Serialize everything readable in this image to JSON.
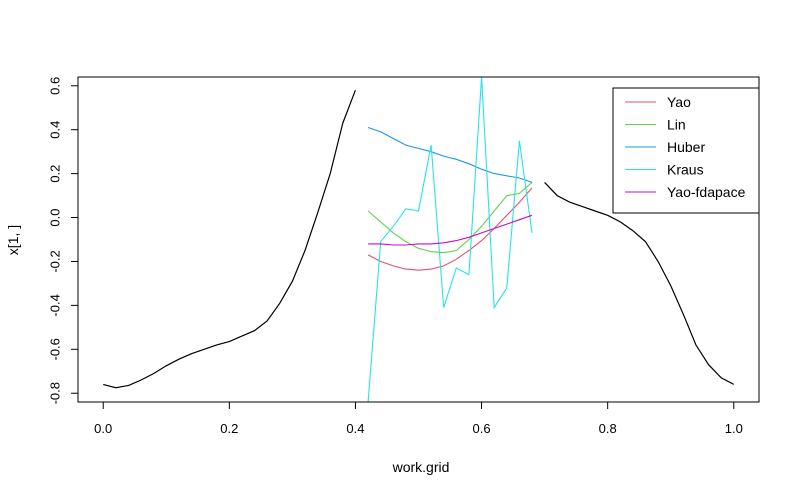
{
  "chart_data": {
    "type": "line",
    "title": "",
    "xlabel": "work.grid",
    "ylabel": "x[1, ]",
    "xlim": [
      -0.04,
      1.04
    ],
    "ylim": [
      -0.84,
      0.64
    ],
    "xticks": [
      "0.0",
      "0.2",
      "0.4",
      "0.6",
      "0.8",
      "1.0"
    ],
    "yticks": [
      "-0.8",
      "-0.6",
      "-0.4",
      "-0.2",
      "0.0",
      "0.2",
      "0.4",
      "0.6"
    ],
    "grid": false,
    "legend_position": "top-right",
    "observed": [
      {
        "name": "",
        "color": "#000000",
        "x": [
          0.0,
          0.02,
          0.04,
          0.06,
          0.08,
          0.1,
          0.12,
          0.14,
          0.16,
          0.18,
          0.2,
          0.22,
          0.24,
          0.26,
          0.28,
          0.3,
          0.32,
          0.34,
          0.36,
          0.38,
          0.4
        ],
        "y": [
          -0.76,
          -0.775,
          -0.765,
          -0.74,
          -0.71,
          -0.675,
          -0.645,
          -0.62,
          -0.6,
          -0.58,
          -0.565,
          -0.54,
          -0.515,
          -0.47,
          -0.39,
          -0.29,
          -0.15,
          0.02,
          0.2,
          0.43,
          0.58
        ]
      },
      {
        "name": "",
        "color": "#000000",
        "x": [
          0.7,
          0.72,
          0.74,
          0.76,
          0.78,
          0.8,
          0.82,
          0.84,
          0.86,
          0.88,
          0.9,
          0.92,
          0.94,
          0.96,
          0.98,
          1.0
        ],
        "y": [
          0.16,
          0.1,
          0.07,
          0.05,
          0.03,
          0.01,
          -0.02,
          -0.06,
          -0.11,
          -0.2,
          -0.31,
          -0.44,
          -0.58,
          -0.67,
          -0.73,
          -0.76
        ]
      }
    ],
    "series": [
      {
        "name": "Yao",
        "color": "#DF536B",
        "x": [
          0.42,
          0.44,
          0.46,
          0.48,
          0.5,
          0.52,
          0.54,
          0.56,
          0.58,
          0.6,
          0.62,
          0.64,
          0.66,
          0.68
        ],
        "y": [
          -0.17,
          -0.2,
          -0.22,
          -0.235,
          -0.24,
          -0.235,
          -0.22,
          -0.19,
          -0.15,
          -0.105,
          -0.05,
          0.01,
          0.07,
          0.135
        ]
      },
      {
        "name": "Lin",
        "color": "#61D04F",
        "x": [
          0.42,
          0.44,
          0.46,
          0.48,
          0.5,
          0.52,
          0.54,
          0.56,
          0.58,
          0.6,
          0.62,
          0.64,
          0.66,
          0.68
        ],
        "y": [
          0.03,
          -0.02,
          -0.07,
          -0.11,
          -0.14,
          -0.155,
          -0.16,
          -0.15,
          -0.1,
          -0.04,
          0.03,
          0.1,
          0.11,
          0.16
        ]
      },
      {
        "name": "Huber",
        "color": "#2297E6",
        "x": [
          0.42,
          0.44,
          0.46,
          0.48,
          0.5,
          0.52,
          0.54,
          0.56,
          0.58,
          0.6,
          0.62,
          0.64,
          0.66,
          0.68
        ],
        "y": [
          0.41,
          0.39,
          0.36,
          0.33,
          0.315,
          0.3,
          0.28,
          0.265,
          0.245,
          0.22,
          0.2,
          0.19,
          0.18,
          0.16
        ]
      },
      {
        "name": "Kraus",
        "color": "#28E2E5",
        "x": [
          0.42,
          0.44,
          0.46,
          0.48,
          0.5,
          0.52,
          0.54,
          0.56,
          0.58,
          0.6,
          0.62,
          0.64,
          0.66,
          0.68
        ],
        "y": [
          -0.84,
          -0.11,
          -0.04,
          0.04,
          0.03,
          0.33,
          -0.41,
          -0.23,
          -0.26,
          0.64,
          -0.41,
          -0.32,
          0.35,
          -0.07
        ]
      },
      {
        "name": "Yao-fdapace",
        "color": "#CD0BBC",
        "x": [
          0.42,
          0.44,
          0.46,
          0.48,
          0.5,
          0.52,
          0.54,
          0.56,
          0.58,
          0.6,
          0.62,
          0.64,
          0.66,
          0.68
        ],
        "y": [
          -0.12,
          -0.12,
          -0.125,
          -0.125,
          -0.12,
          -0.12,
          -0.115,
          -0.105,
          -0.09,
          -0.07,
          -0.05,
          -0.03,
          -0.01,
          0.01
        ]
      }
    ]
  }
}
